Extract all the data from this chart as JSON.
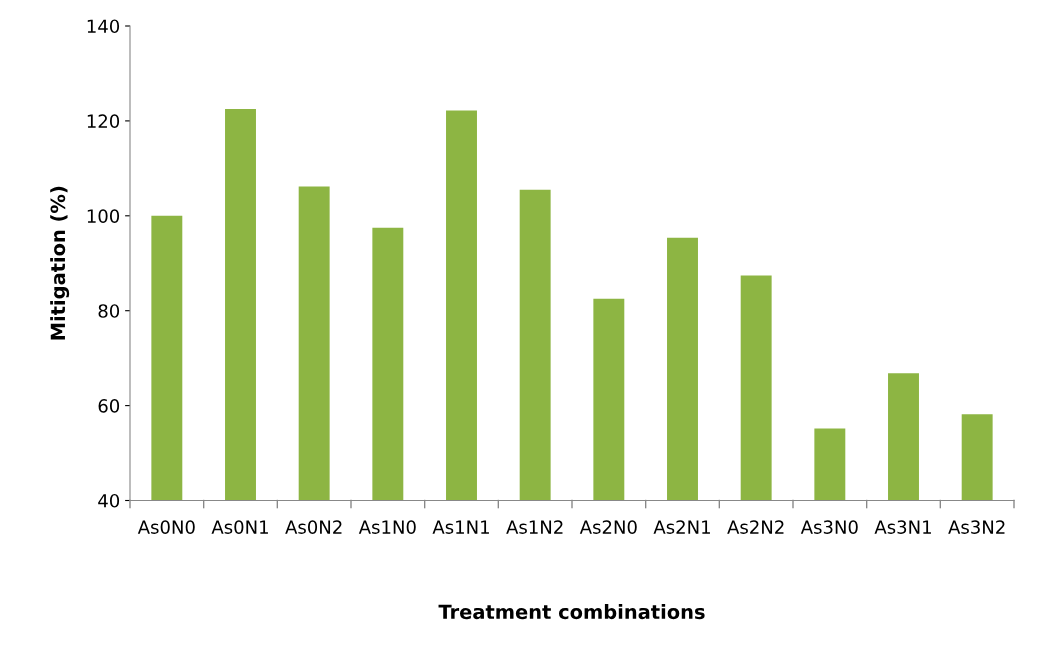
{
  "chart_data": {
    "type": "bar",
    "xlabel": "Treatment combinations",
    "ylabel": "Mitigation (%)",
    "categories": [
      "As0N0",
      "As0N1",
      "As0N2",
      "As1N0",
      "As1N1",
      "As1N2",
      "As2N0",
      "As2N1",
      "As2N2",
      "As3N0",
      "As3N1",
      "As3N2"
    ],
    "values": [
      100.0,
      122.5,
      106.2,
      97.5,
      122.2,
      105.5,
      82.5,
      95.4,
      87.4,
      55.2,
      66.8,
      58.2
    ],
    "color": "#8db543",
    "ylim": [
      40,
      140
    ],
    "yticks": [
      40,
      60,
      80,
      100,
      120,
      140
    ],
    "grid": false,
    "legend": false
  }
}
